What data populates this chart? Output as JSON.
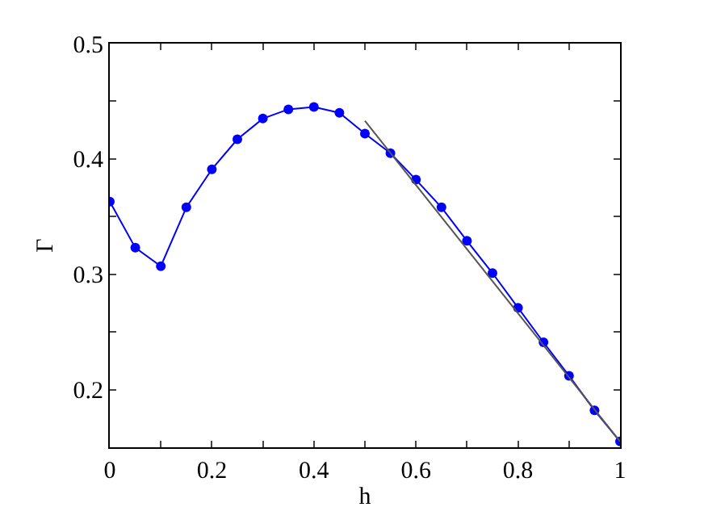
{
  "chart_data": {
    "type": "line",
    "xlabel": "h",
    "ylabel": "Γ",
    "xlim": [
      0,
      1
    ],
    "ylim": [
      0.15,
      0.5
    ],
    "xticks": [
      0,
      {
        "value": 0.1,
        "label": null
      },
      0.2,
      {
        "value": 0.3,
        "label": null
      },
      0.4,
      {
        "value": 0.5,
        "label": null
      },
      0.6,
      {
        "value": 0.7,
        "label": null
      },
      0.8,
      {
        "value": 0.9,
        "label": null
      },
      1
    ],
    "yticks": [
      {
        "value": 0.15,
        "label": null
      },
      0.2,
      {
        "value": 0.25,
        "label": null
      },
      0.3,
      {
        "value": 0.35,
        "label": null
      },
      0.4,
      {
        "value": 0.45,
        "label": null
      },
      0.5
    ],
    "series": [
      {
        "color": "#0000ff",
        "marker": "circle",
        "line_style": "solid",
        "x": [
          0,
          0.05,
          0.1,
          0.15,
          0.2,
          0.25,
          0.3,
          0.35,
          0.4,
          0.45,
          0.5,
          0.55,
          0.6,
          0.65,
          0.7,
          0.75,
          0.8,
          0.85,
          0.9,
          0.95,
          1
        ],
        "values": [
          0.363,
          0.323,
          0.307,
          0.358,
          0.391,
          0.417,
          0.435,
          0.443,
          0.445,
          0.44,
          0.422,
          0.405,
          0.382,
          0.358,
          0.329,
          0.301,
          0.271,
          0.241,
          0.212,
          0.182,
          0.155
        ]
      },
      {
        "color": "#555555",
        "marker": "none",
        "line_style": "solid",
        "x": [
          0.5,
          1
        ],
        "values": [
          0.433,
          0.155
        ]
      }
    ]
  }
}
